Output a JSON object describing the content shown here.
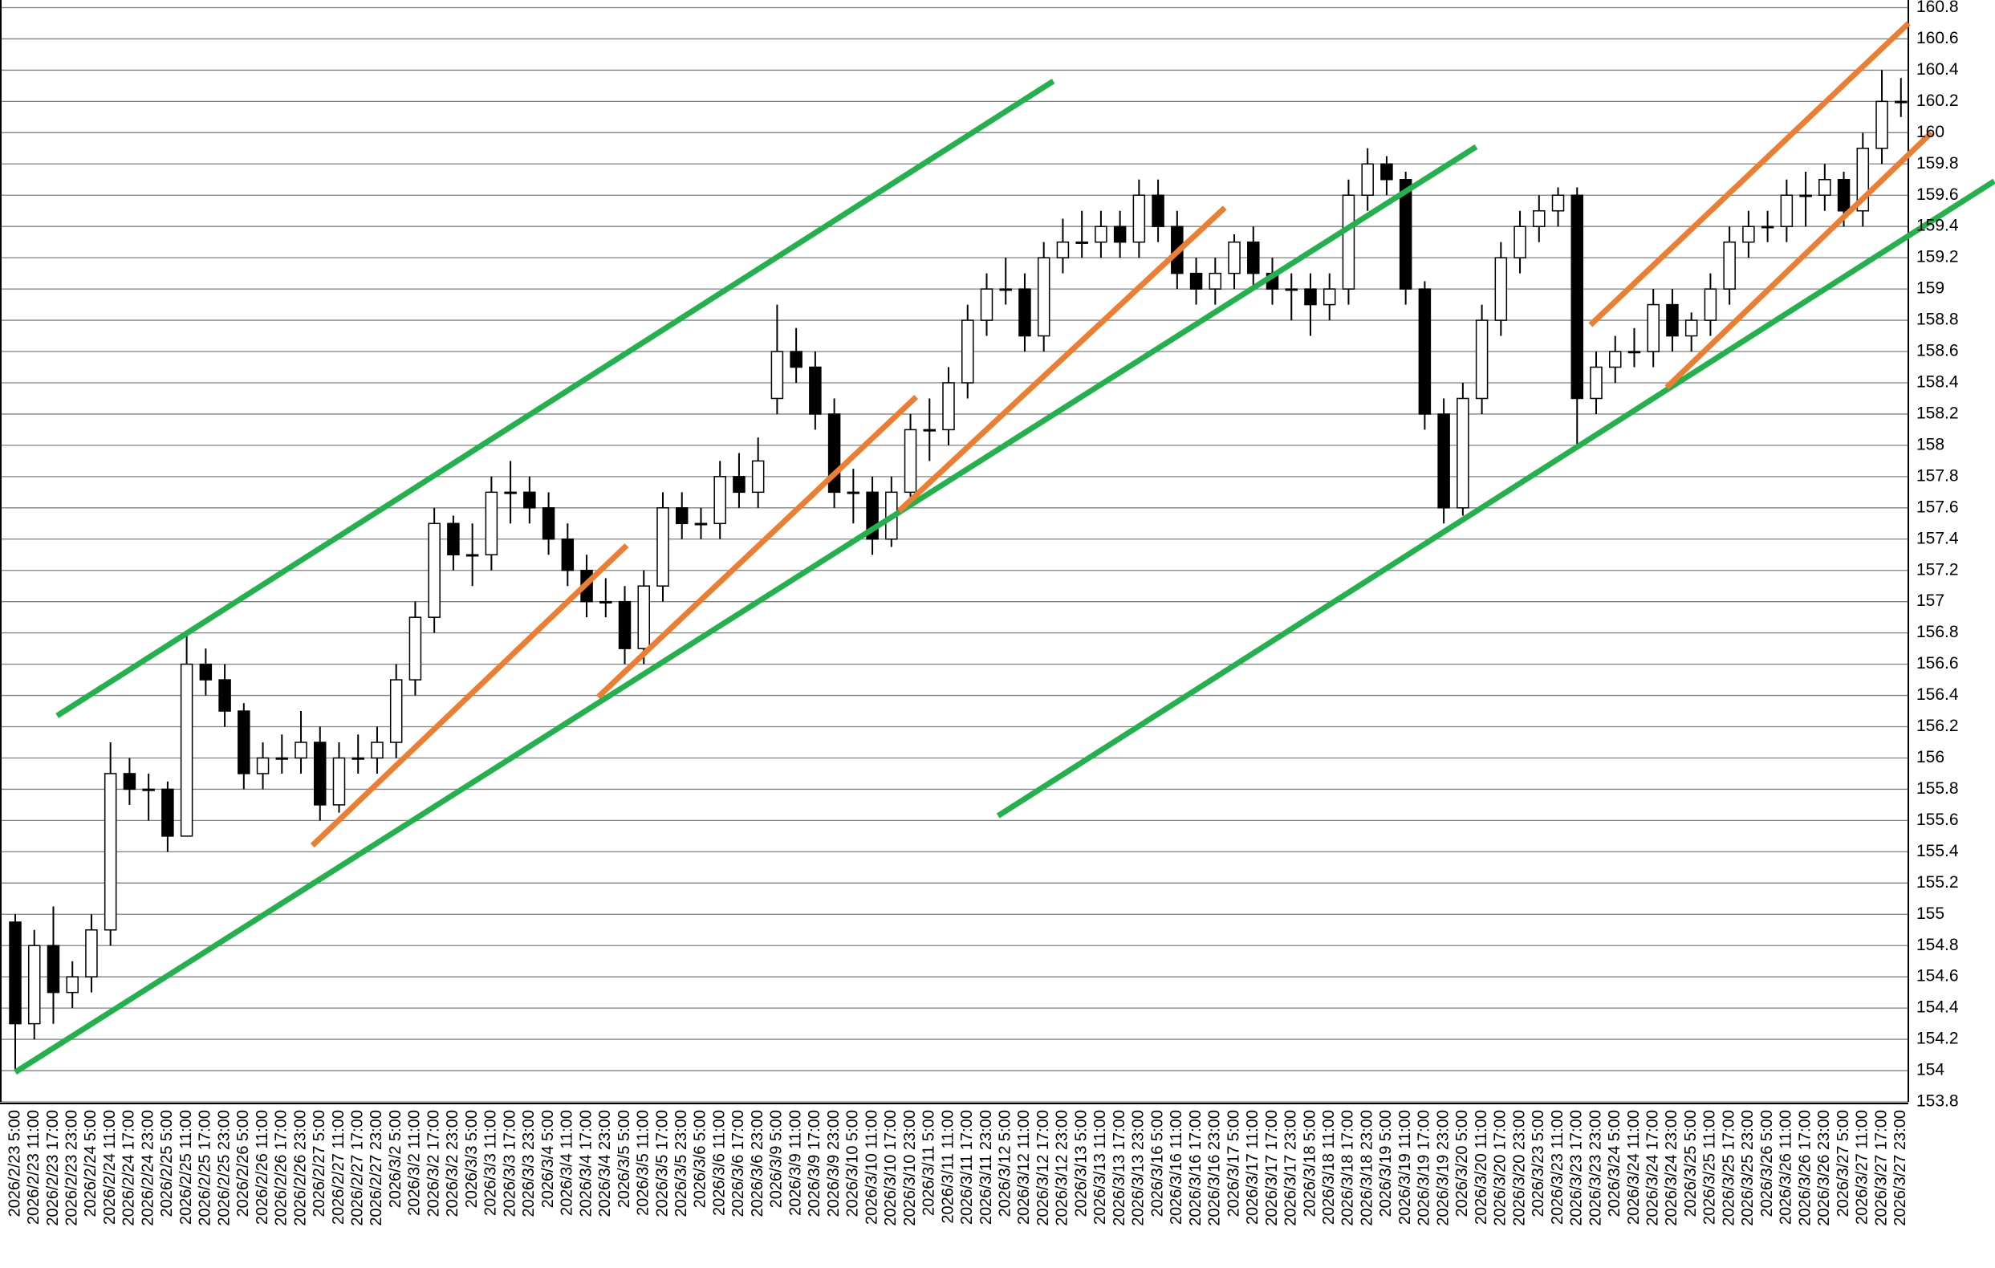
{
  "chart_data": {
    "type": "candlestick",
    "categories": [
      "2026/2/23 5:00",
      "2026/2/23 11:00",
      "2026/2/23 17:00",
      "2026/2/23 23:00",
      "2026/2/24 5:00",
      "2026/2/24 11:00",
      "2026/2/24 17:00",
      "2026/2/24 23:00",
      "2026/2/25 5:00",
      "2026/2/25 11:00",
      "2026/2/25 17:00",
      "2026/2/25 23:00",
      "2026/2/26 5:00",
      "2026/2/26 11:00",
      "2026/2/26 17:00",
      "2026/2/26 23:00",
      "2026/2/27 5:00",
      "2026/2/27 11:00",
      "2026/2/27 17:00",
      "2026/2/27 23:00",
      "2026/3/2 5:00",
      "2026/3/2 11:00",
      "2026/3/2 17:00",
      "2026/3/2 23:00",
      "2026/3/3 5:00",
      "2026/3/3 11:00",
      "2026/3/3 17:00",
      "2026/3/3 23:00",
      "2026/3/4 5:00",
      "2026/3/4 11:00",
      "2026/3/4 17:00",
      "2026/3/4 23:00",
      "2026/3/5 5:00",
      "2026/3/5 11:00",
      "2026/3/5 17:00",
      "2026/3/5 23:00",
      "2026/3/6 5:00",
      "2026/3/6 11:00",
      "2026/3/6 17:00",
      "2026/3/6 23:00",
      "2026/3/9 5:00",
      "2026/3/9 11:00",
      "2026/3/9 17:00",
      "2026/3/9 23:00",
      "2026/3/10 5:00",
      "2026/3/10 11:00",
      "2026/3/10 17:00",
      "2026/3/10 23:00",
      "2026/3/11 5:00",
      "2026/3/11 11:00",
      "2026/3/11 17:00",
      "2026/3/11 23:00",
      "2026/3/12 5:00",
      "2026/3/12 11:00",
      "2026/3/12 17:00",
      "2026/3/12 23:00",
      "2026/3/13 5:00",
      "2026/3/13 11:00",
      "2026/3/13 17:00",
      "2026/3/13 23:00",
      "2026/3/16 5:00",
      "2026/3/16 11:00",
      "2026/3/16 17:00",
      "2026/3/16 23:00",
      "2026/3/17 5:00",
      "2026/3/17 11:00",
      "2026/3/17 17:00",
      "2026/3/17 23:00",
      "2026/3/18 5:00",
      "2026/3/18 11:00",
      "2026/3/18 17:00",
      "2026/3/18 23:00",
      "2026/3/19 5:00",
      "2026/3/19 11:00",
      "2026/3/19 17:00",
      "2026/3/19 23:00",
      "2026/3/20 5:00",
      "2026/3/20 11:00",
      "2026/3/20 17:00",
      "2026/3/20 23:00",
      "2026/3/23 5:00",
      "2026/3/23 11:00",
      "2026/3/23 17:00",
      "2026/3/23 23:00",
      "2026/3/24 5:00",
      "2026/3/24 11:00",
      "2026/3/24 17:00",
      "2026/3/24 23:00",
      "2026/3/25 5:00",
      "2026/3/25 11:00",
      "2026/3/25 17:00",
      "2026/3/25 23:00",
      "2026/3/26 5:00",
      "2026/3/26 11:00",
      "2026/3/26 17:00",
      "2026/3/26 23:00",
      "2026/3/27 5:00",
      "2026/3/27 11:00",
      "2026/3/27 17:00",
      "2026/3/27 23:00"
    ],
    "open": [
      154.95,
      154.3,
      154.8,
      154.5,
      154.6,
      154.9,
      155.9,
      155.8,
      155.8,
      155.5,
      156.6,
      156.5,
      156.3,
      155.9,
      156.0,
      156.0,
      156.1,
      155.7,
      156.0,
      156.0,
      156.1,
      156.5,
      156.9,
      157.5,
      157.3,
      157.3,
      157.7,
      157.7,
      157.6,
      157.4,
      157.2,
      157.0,
      157.0,
      156.7,
      157.1,
      157.6,
      157.5,
      157.5,
      157.8,
      157.7,
      158.3,
      158.6,
      158.5,
      158.2,
      157.7,
      157.7,
      157.4,
      157.7,
      158.1,
      158.1,
      158.4,
      158.8,
      159.0,
      159.0,
      158.7,
      159.2,
      159.3,
      159.3,
      159.4,
      159.3,
      159.6,
      159.4,
      159.1,
      159.0,
      159.1,
      159.3,
      159.1,
      159.0,
      159.0,
      158.9,
      159.0,
      159.6,
      159.8,
      159.7,
      159.0,
      158.2,
      157.6,
      158.3,
      158.8,
      159.2,
      159.4,
      159.5,
      159.6,
      158.3,
      158.5,
      158.6,
      158.6,
      158.9,
      158.7,
      158.8,
      159.0,
      159.3,
      159.4,
      159.4,
      159.6,
      159.6,
      159.7,
      159.5,
      159.9,
      160.2
    ],
    "high": [
      155.0,
      154.9,
      155.05,
      154.7,
      155.0,
      156.1,
      156.0,
      155.9,
      155.85,
      156.8,
      156.7,
      156.6,
      156.35,
      156.1,
      156.15,
      156.3,
      156.2,
      156.1,
      156.15,
      156.2,
      156.6,
      157.0,
      157.6,
      157.55,
      157.5,
      157.8,
      157.9,
      157.8,
      157.7,
      157.5,
      157.3,
      157.15,
      157.1,
      157.2,
      157.7,
      157.7,
      157.6,
      157.9,
      157.95,
      158.05,
      158.9,
      158.75,
      158.6,
      158.3,
      157.85,
      157.8,
      157.8,
      158.2,
      158.3,
      158.5,
      158.9,
      159.1,
      159.2,
      159.1,
      159.3,
      159.45,
      159.5,
      159.5,
      159.5,
      159.7,
      159.7,
      159.5,
      159.2,
      159.2,
      159.35,
      159.4,
      159.2,
      159.1,
      159.1,
      159.1,
      159.7,
      159.9,
      159.85,
      159.75,
      159.05,
      158.3,
      158.4,
      158.9,
      159.3,
      159.5,
      159.6,
      159.65,
      159.65,
      158.6,
      158.7,
      158.75,
      159.0,
      159.0,
      158.85,
      159.1,
      159.4,
      159.5,
      159.5,
      159.7,
      159.75,
      159.8,
      159.75,
      160.0,
      160.4,
      160.35
    ],
    "low": [
      154.0,
      154.2,
      154.3,
      154.4,
      154.5,
      154.8,
      155.7,
      155.6,
      155.4,
      155.5,
      156.4,
      156.2,
      155.8,
      155.8,
      155.9,
      155.9,
      155.6,
      155.65,
      155.9,
      155.9,
      156.0,
      156.4,
      156.8,
      157.2,
      157.1,
      157.2,
      157.5,
      157.5,
      157.3,
      157.1,
      156.9,
      156.9,
      156.6,
      156.6,
      157.0,
      157.4,
      157.4,
      157.4,
      157.6,
      157.6,
      158.2,
      158.4,
      158.1,
      157.6,
      157.5,
      157.3,
      157.35,
      157.6,
      157.9,
      158.0,
      158.3,
      158.7,
      158.9,
      158.6,
      158.6,
      159.1,
      159.2,
      159.2,
      159.2,
      159.2,
      159.3,
      159.0,
      158.9,
      158.9,
      159.0,
      159.0,
      158.9,
      158.8,
      158.7,
      158.8,
      158.9,
      159.5,
      159.6,
      158.9,
      158.1,
      157.5,
      157.55,
      158.2,
      158.7,
      159.1,
      159.3,
      159.4,
      158.0,
      158.2,
      158.4,
      158.5,
      158.5,
      158.6,
      158.6,
      158.7,
      158.9,
      159.2,
      159.3,
      159.3,
      159.4,
      159.5,
      159.4,
      159.4,
      159.8,
      160.1
    ],
    "close": [
      154.3,
      154.8,
      154.5,
      154.6,
      154.9,
      155.9,
      155.8,
      155.8,
      155.5,
      156.6,
      156.5,
      156.3,
      155.9,
      156.0,
      156.0,
      156.1,
      155.7,
      156.0,
      156.0,
      156.1,
      156.5,
      156.9,
      157.5,
      157.3,
      157.3,
      157.7,
      157.7,
      157.6,
      157.4,
      157.2,
      157.0,
      157.0,
      156.7,
      157.1,
      157.6,
      157.5,
      157.5,
      157.8,
      157.7,
      157.9,
      158.6,
      158.5,
      158.2,
      157.7,
      157.7,
      157.4,
      157.7,
      158.1,
      158.1,
      158.4,
      158.8,
      159.0,
      159.0,
      158.7,
      159.2,
      159.3,
      159.3,
      159.4,
      159.3,
      159.6,
      159.4,
      159.1,
      159.0,
      159.1,
      159.3,
      159.1,
      159.0,
      159.0,
      158.9,
      159.0,
      159.6,
      159.8,
      159.7,
      159.0,
      158.2,
      157.6,
      158.3,
      158.8,
      159.2,
      159.4,
      159.5,
      159.6,
      158.3,
      158.5,
      158.6,
      158.6,
      158.9,
      158.7,
      158.8,
      159.0,
      159.3,
      159.4,
      159.4,
      159.6,
      159.6,
      159.7,
      159.5,
      159.9,
      160.2,
      160.2
    ],
    "up_color": "#ffffff",
    "down_color": "#000000",
    "outline_color": "#000000",
    "ylim": [
      153.8,
      160.8
    ],
    "yticks": [
      153.8,
      154,
      154.2,
      154.4,
      154.6,
      154.8,
      155,
      155.2,
      155.4,
      155.6,
      155.8,
      156,
      156.2,
      156.4,
      156.6,
      156.8,
      157,
      157.2,
      157.4,
      157.6,
      157.8,
      158,
      158.2,
      158.4,
      158.6,
      158.8,
      159,
      159.2,
      159.4,
      159.6,
      159.8,
      160,
      160.2,
      160.4,
      160.6,
      160.8
    ],
    "grid": true,
    "trendlines": [
      {
        "color": "#22b14c",
        "x": [
          2.2,
          54.5
        ],
        "y": [
          156.27,
          160.33
        ]
      },
      {
        "color": "#22b14c",
        "x": [
          0,
          76.7
        ],
        "y": [
          153.99,
          159.91
        ]
      },
      {
        "color": "#22b14c",
        "x": [
          51.6,
          103.9
        ],
        "y": [
          155.63,
          159.69
        ]
      },
      {
        "color": "#ed7d31",
        "x": [
          15.6,
          32.1
        ],
        "y": [
          155.44,
          157.36
        ]
      },
      {
        "color": "#ed7d31",
        "x": [
          30.6,
          47.3
        ],
        "y": [
          156.39,
          158.31
        ]
      },
      {
        "color": "#ed7d31",
        "x": [
          46.4,
          63.5
        ],
        "y": [
          157.58,
          159.52
        ]
      },
      {
        "color": "#ed7d31",
        "x": [
          82.7,
          99.4
        ],
        "y": [
          158.77,
          160.7
        ]
      },
      {
        "color": "#ed7d31",
        "x": [
          86.7,
          100.6
        ],
        "y": [
          158.37,
          160.0
        ]
      }
    ]
  }
}
